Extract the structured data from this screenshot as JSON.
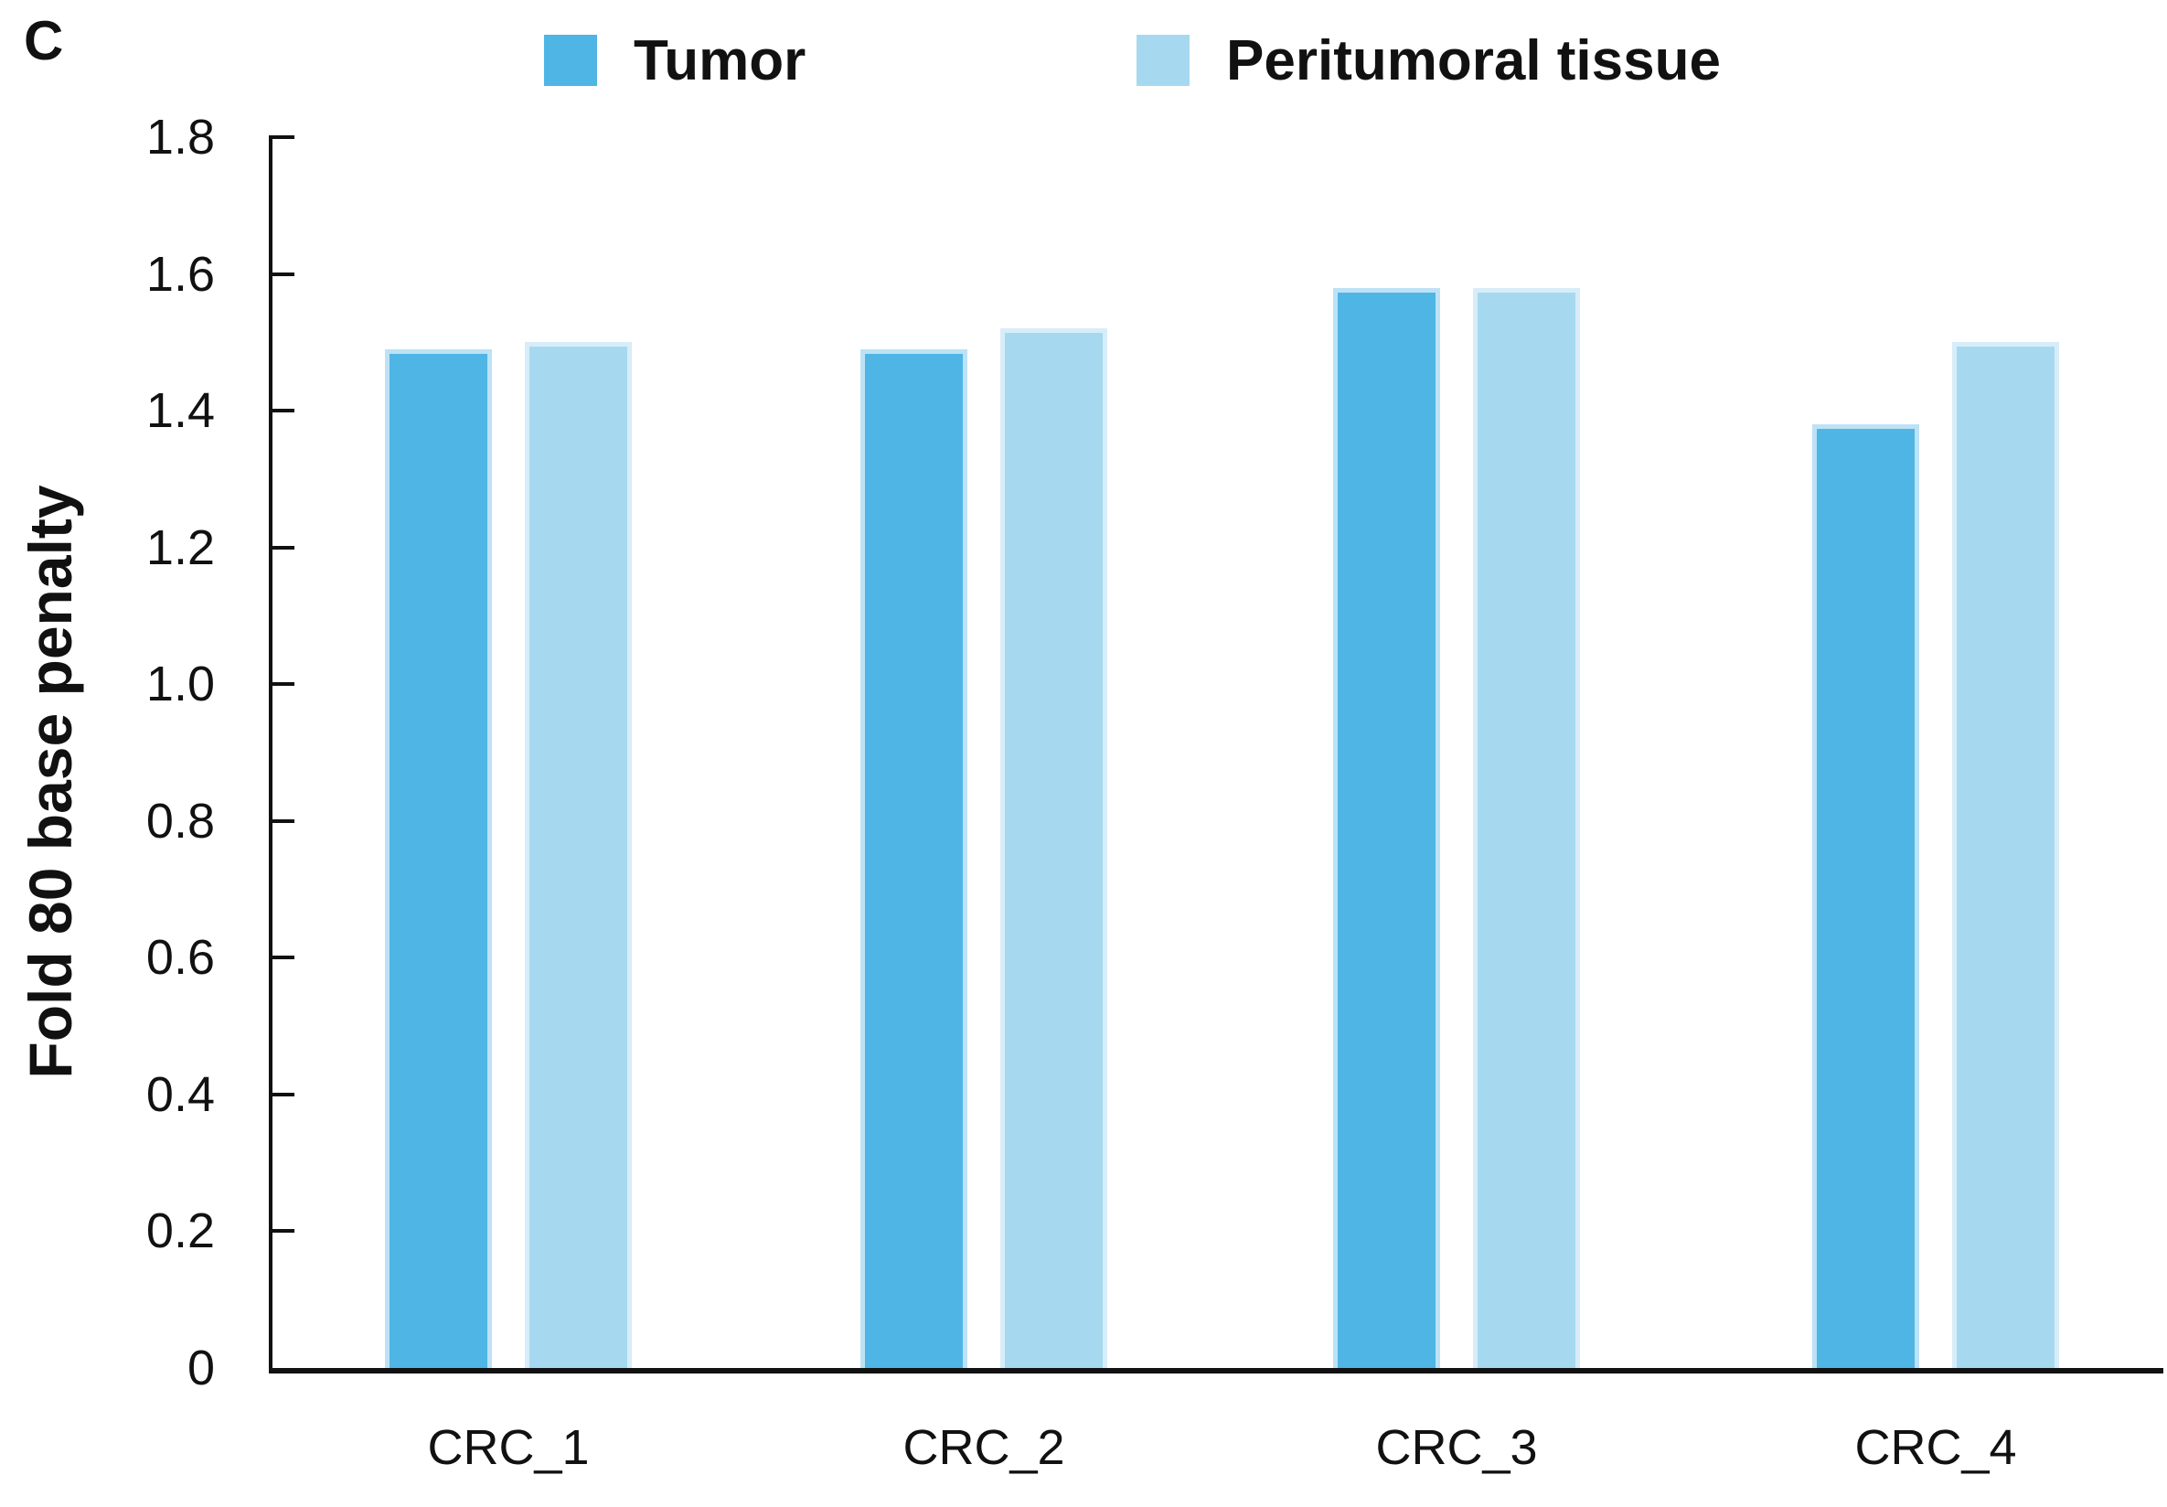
{
  "panel_label": "C",
  "chart_data": {
    "type": "bar",
    "title": "",
    "categories": [
      "CRC_1",
      "CRC_2",
      "CRC_3",
      "CRC_4"
    ],
    "series": [
      {
        "name": "Tumor",
        "color": "#4FB5E5",
        "values": [
          1.49,
          1.49,
          1.58,
          1.38
        ]
      },
      {
        "name": "Peritumoral tissue",
        "color": "#A6D9F0",
        "values": [
          1.5,
          1.52,
          1.58,
          1.5
        ]
      }
    ],
    "xlabel": "",
    "ylabel": "Fold 80 base penalty",
    "ylim": [
      0,
      1.8
    ],
    "ytick_labels": [
      "1.8",
      "1.6",
      "1.4",
      "1.2",
      "1.0",
      "0.8",
      "0.6",
      "0.4",
      "0.2",
      "0"
    ],
    "grid": false,
    "legend_position": "top",
    "axis_color": "#111111"
  }
}
